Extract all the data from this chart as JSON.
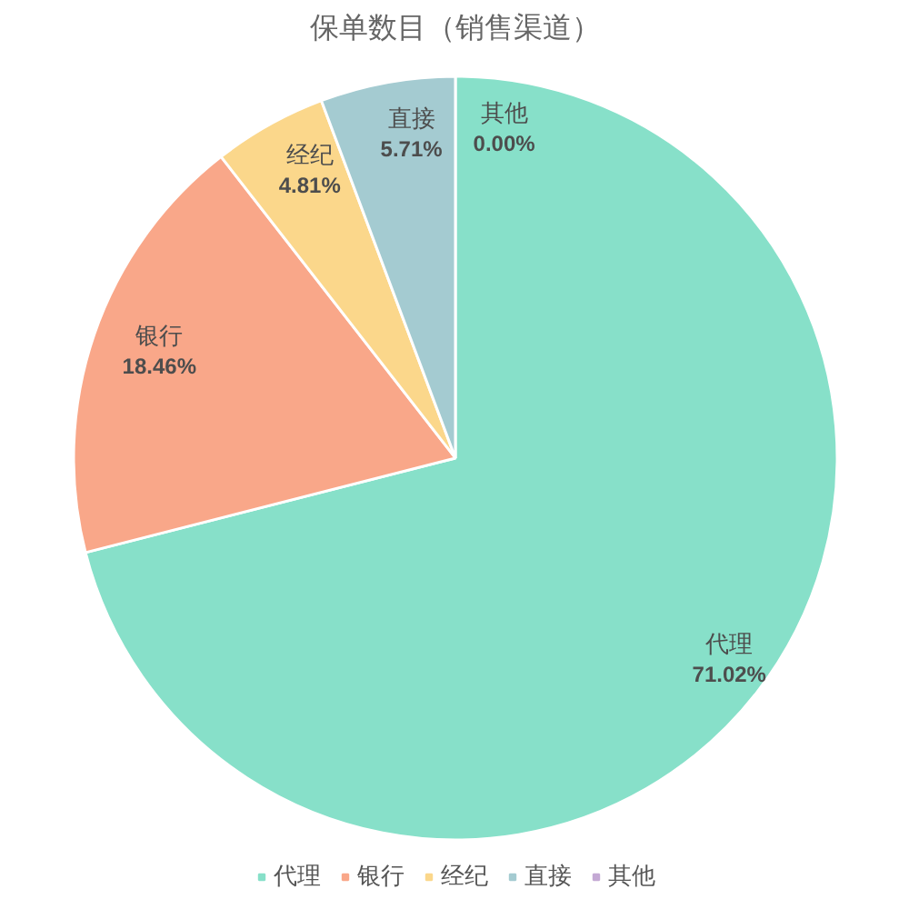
{
  "chart_data": {
    "type": "pie",
    "title": "保单数目（销售渠道）",
    "categories": [
      "代理",
      "银行",
      "经纪",
      "直接",
      "其他"
    ],
    "values": [
      71.02,
      18.46,
      4.81,
      5.71,
      0.0
    ],
    "colors": [
      "#87e0c9",
      "#f9a789",
      "#fbd78b",
      "#a4cbd1",
      "#c4a9d4"
    ],
    "value_labels": [
      "71.02%",
      "18.46%",
      "4.81%",
      "5.71%",
      "0.00%"
    ],
    "legend": "bottom"
  }
}
